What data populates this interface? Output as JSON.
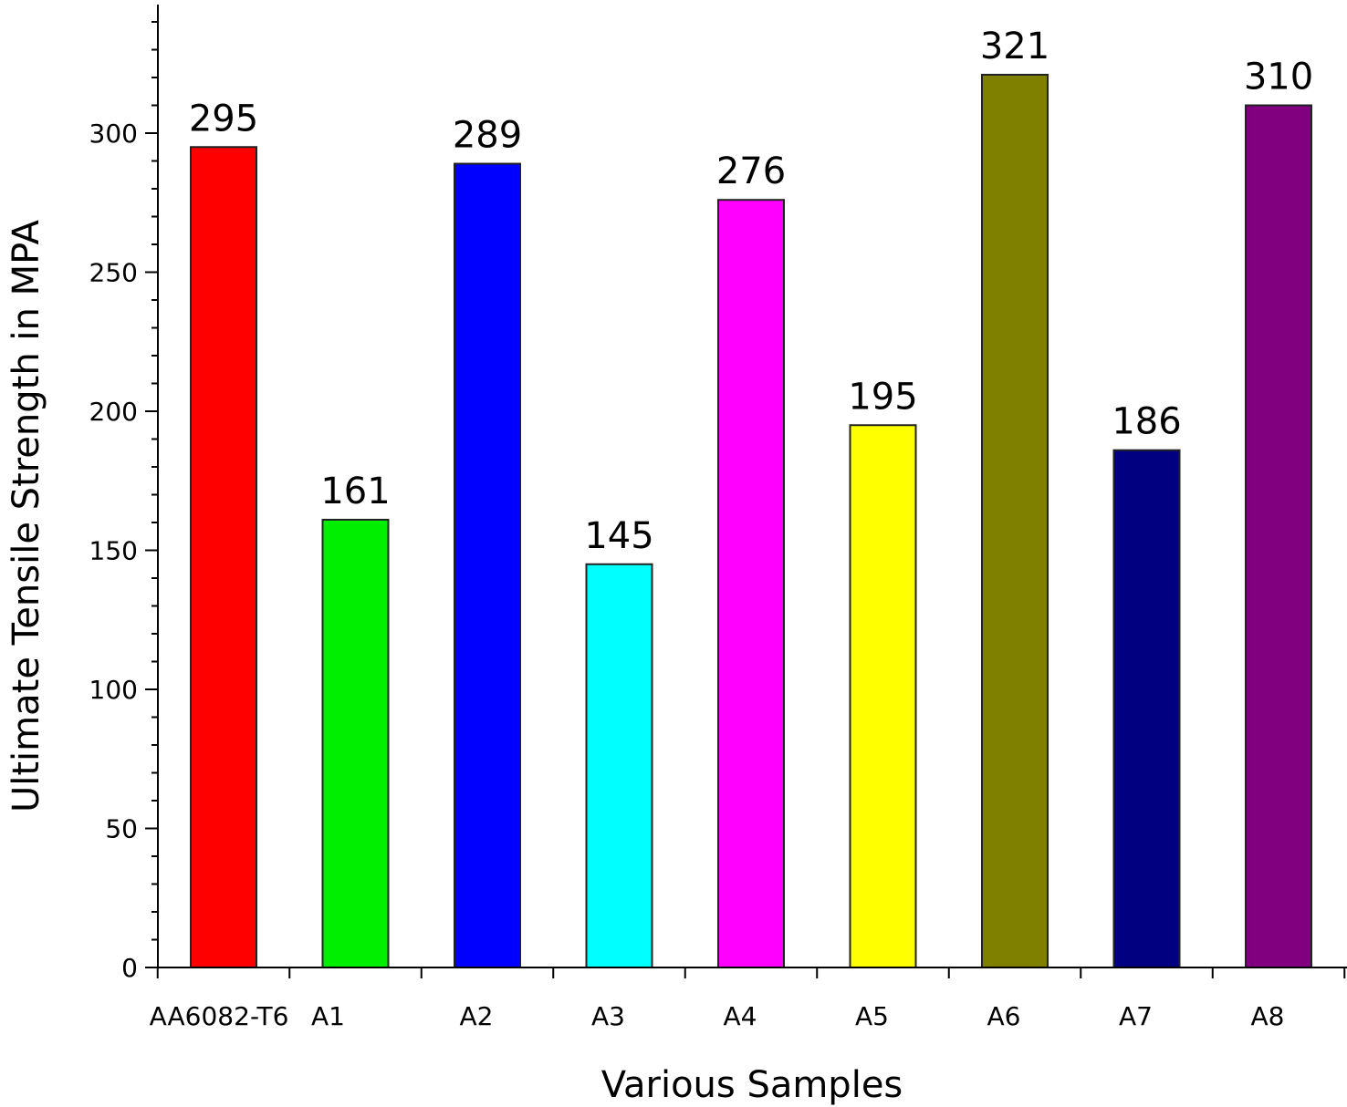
{
  "chart_data": {
    "type": "bar",
    "categories": [
      "AA6082-T6",
      "A1",
      "A2",
      "A3",
      "A4",
      "A5",
      "A6",
      "A7",
      "A8"
    ],
    "values": [
      295,
      161,
      289,
      145,
      276,
      195,
      321,
      186,
      310
    ],
    "data_labels": [
      "295",
      "161",
      "289",
      "145",
      "276",
      "195",
      "321",
      "186",
      "310"
    ],
    "colors": [
      "#ff0000",
      "#00ee00",
      "#0000ff",
      "#00ffff",
      "#ff00ff",
      "#ffff00",
      "#808000",
      "#000080",
      "#800080"
    ],
    "title": "",
    "xlabel": "Various Samples",
    "ylabel": "Ultimate Tensile Strength in MPA",
    "ylim": [
      0,
      345
    ],
    "yticks": [
      0,
      50,
      100,
      150,
      200,
      250,
      300
    ],
    "ytick_labels": [
      "0",
      "50",
      "100",
      "150",
      "200",
      "250",
      "300"
    ],
    "minor_ytick_step": 10,
    "grid": false,
    "legend": "none"
  }
}
